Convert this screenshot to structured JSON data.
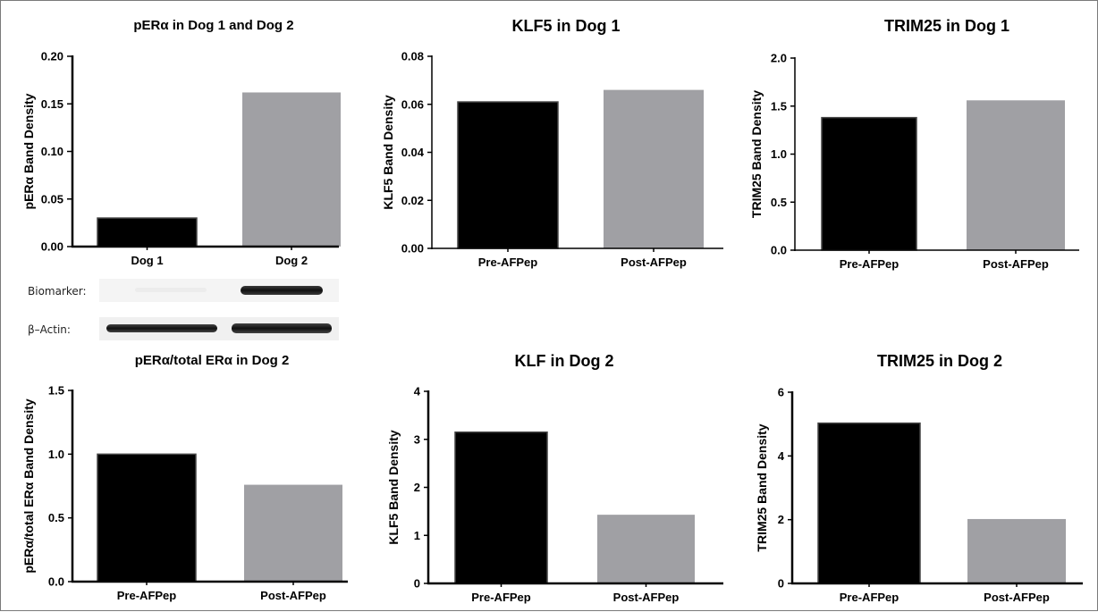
{
  "colors": {
    "pre": "#000000",
    "post": "#a0a0a4",
    "axis": "#000000"
  },
  "chart_data": [
    {
      "type": "bar",
      "title": "pERα in Dog 1 and Dog 2",
      "ylabel": "pERα Band Density",
      "categories": [
        "Dog 1",
        "Dog 2"
      ],
      "values": [
        0.03,
        0.162
      ],
      "ylim": [
        0,
        0.2
      ],
      "yticks": [
        "0.00",
        "0.05",
        "0.10",
        "0.15",
        "0.20"
      ],
      "bar_colors": [
        "#000000",
        "#a0a0a4"
      ],
      "grid": false
    },
    {
      "type": "bar",
      "title": "KLF5 in  Dog 1",
      "ylabel": "KLF5 Band Density",
      "categories": [
        "Pre-AFPep",
        "Post-AFPep"
      ],
      "values": [
        0.061,
        0.066
      ],
      "ylim": [
        0,
        0.08
      ],
      "yticks": [
        "0.00",
        "0.02",
        "0.04",
        "0.06",
        "0.08"
      ],
      "bar_colors": [
        "#000000",
        "#a0a0a4"
      ],
      "grid": false
    },
    {
      "type": "bar",
      "title": "TRIM25 in  Dog 1",
      "ylabel": "TRIM25 Band Density",
      "categories": [
        "Pre-AFPep",
        "Post-AFPep"
      ],
      "values": [
        1.38,
        1.56
      ],
      "ylim": [
        0,
        2.0
      ],
      "yticks": [
        "0.0",
        "0.5",
        "1.0",
        "1.5",
        "2.0"
      ],
      "bar_colors": [
        "#000000",
        "#a0a0a4"
      ],
      "grid": false
    },
    {
      "type": "bar",
      "title": "pERα/total ERα in Dog 2",
      "ylabel": "pERα/total ERα Band Density",
      "categories": [
        "Pre-AFPep",
        "Post-AFPep"
      ],
      "values": [
        1.0,
        0.76
      ],
      "ylim": [
        0,
        1.5
      ],
      "yticks": [
        "0.0",
        "0.5",
        "1.0",
        "1.5"
      ],
      "bar_colors": [
        "#000000",
        "#a0a0a4"
      ],
      "grid": false
    },
    {
      "type": "bar",
      "title": "KLF in  Dog 2",
      "ylabel": "KLF5 Band Density",
      "categories": [
        "Pre-AFPep",
        "Post-AFPep"
      ],
      "values": [
        3.15,
        1.43
      ],
      "ylim": [
        0,
        4
      ],
      "yticks": [
        "0",
        "1",
        "2",
        "3",
        "4"
      ],
      "bar_colors": [
        "#000000",
        "#a0a0a4"
      ],
      "grid": false
    },
    {
      "type": "bar",
      "title": "TRIM25 in  Dog 2",
      "ylabel": "TRIM25 Band Density",
      "categories": [
        "Pre-AFPep",
        "Post-AFPep"
      ],
      "values": [
        5.03,
        2.02
      ],
      "ylim": [
        0,
        6
      ],
      "yticks": [
        "0",
        "2",
        "4",
        "6"
      ],
      "bar_colors": [
        "#000000",
        "#a0a0a4"
      ],
      "grid": false
    }
  ],
  "western_blot": {
    "rows": [
      {
        "label": "Biomarker:"
      },
      {
        "label": "β–Actin:"
      }
    ]
  }
}
